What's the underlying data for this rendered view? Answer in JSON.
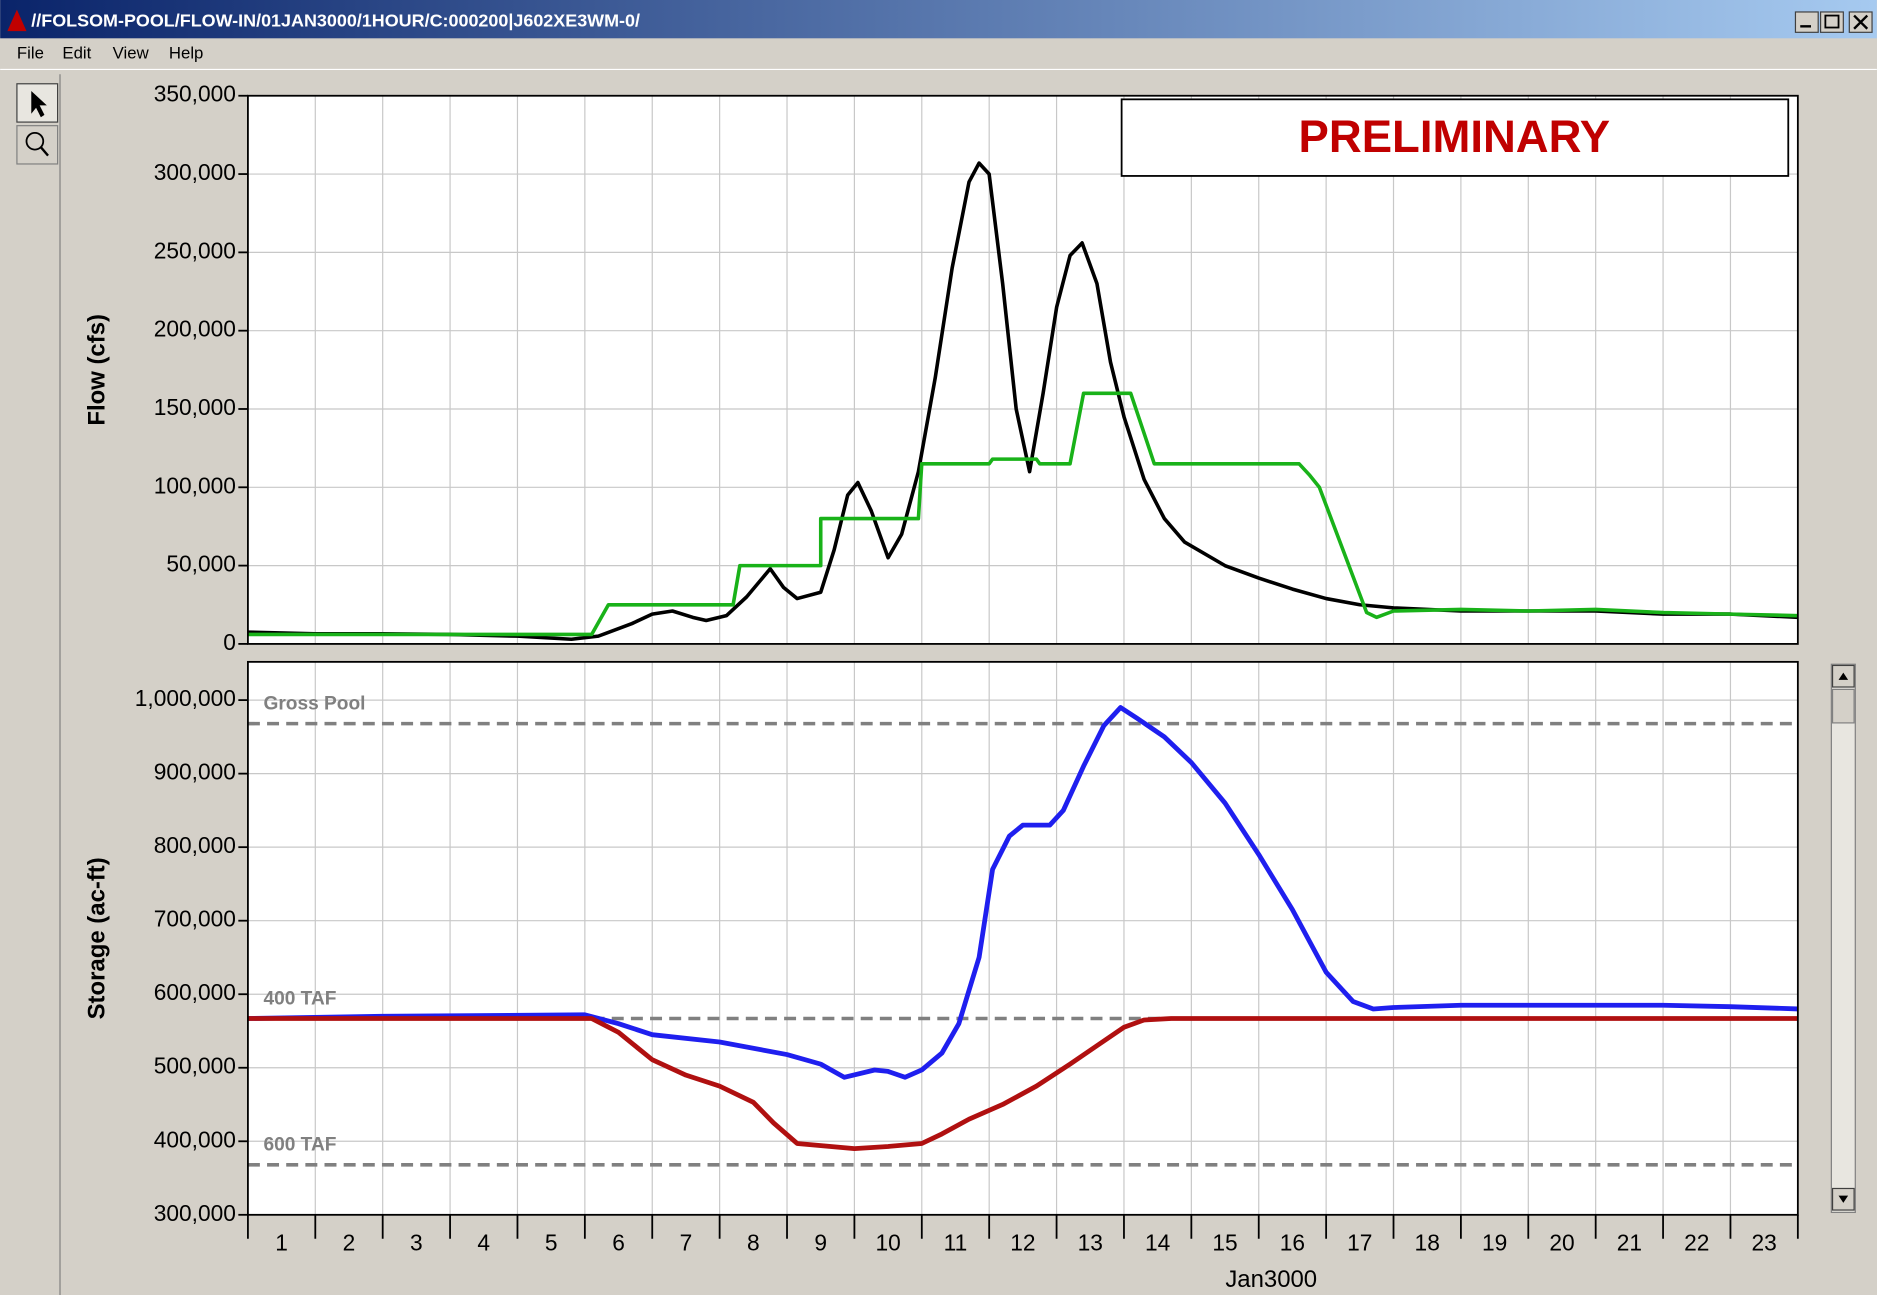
{
  "window": {
    "title": "//FOLSOM-POOL/FLOW-IN/01JAN3000/1HOUR/C:000200|J602XE3WM-0/",
    "menu": [
      "File",
      "Edit",
      "View",
      "Help"
    ]
  },
  "chart_data": [
    {
      "type": "line",
      "annotation": "PRELIMINARY",
      "ylabel": "Flow (cfs)",
      "grid": true,
      "xlim": [
        0,
        23
      ],
      "xgrid": [
        0,
        1,
        2,
        3,
        4,
        5,
        6,
        7,
        8,
        9,
        10,
        11,
        12,
        13,
        14,
        15,
        16,
        17,
        18,
        19,
        20,
        21,
        22,
        23
      ],
      "ylim": [
        0,
        350000
      ],
      "yticks": [
        0,
        {
          "value": 50000,
          "label": "50,000"
        },
        {
          "value": 100000,
          "label": "100,000"
        },
        {
          "value": 150000,
          "label": "150,000"
        },
        {
          "value": 200000,
          "label": "200,000"
        },
        {
          "value": 250000,
          "label": "250,000"
        },
        {
          "value": 300000,
          "label": "300,000"
        },
        {
          "value": 350000,
          "label": "350,000"
        }
      ],
      "series": [
        {
          "color": "#000000",
          "x": [
            0,
            1,
            2,
            3,
            4,
            4.8,
            5.2,
            5.7,
            6.0,
            6.3,
            6.6,
            6.8,
            7.1,
            7.4,
            7.75,
            7.95,
            8.15,
            8.5,
            8.7,
            8.9,
            9.05,
            9.25,
            9.5,
            9.7,
            9.95,
            10.2,
            10.45,
            10.7,
            10.85,
            11.0,
            11.2,
            11.4,
            11.6,
            11.8,
            12.0,
            12.2,
            12.38,
            12.6,
            12.8,
            13.0,
            13.3,
            13.6,
            13.9,
            14.5,
            15.0,
            15.5,
            16.0,
            16.5,
            17.0,
            17.5,
            18,
            19,
            20,
            21,
            22,
            23
          ],
          "values": [
            7500,
            6500,
            6500,
            6000,
            5000,
            3000,
            5000,
            13000,
            19000,
            21000,
            17000,
            15000,
            18000,
            30000,
            48000,
            36000,
            29000,
            33000,
            60000,
            95000,
            103000,
            85000,
            55000,
            70000,
            110000,
            170000,
            240000,
            295000,
            307000,
            300000,
            230000,
            150000,
            110000,
            160000,
            215000,
            248000,
            256000,
            230000,
            180000,
            145000,
            105000,
            80000,
            65000,
            50000,
            42000,
            35000,
            29000,
            25000,
            23000,
            22000,
            21000,
            21000,
            21000,
            19000,
            19000,
            17000
          ]
        },
        {
          "color": "#19b219",
          "x": [
            0,
            5.1,
            5.35,
            7.2,
            7.3,
            8.5,
            8.5,
            9.95,
            10.0,
            11.0,
            11.05,
            11.7,
            11.75,
            12.2,
            12.4,
            13.1,
            13.45,
            15.6,
            15.75,
            15.9,
            16.6,
            16.75,
            17.0,
            18,
            19,
            20,
            21,
            22,
            23
          ],
          "values": [
            6000,
            6000,
            25000,
            25000,
            50000,
            50000,
            80000,
            80000,
            115000,
            115000,
            118000,
            118000,
            115000,
            115000,
            160000,
            160000,
            115000,
            115000,
            108000,
            100000,
            20000,
            17000,
            21000,
            22000,
            21000,
            22000,
            20000,
            19000,
            18000
          ]
        }
      ]
    },
    {
      "type": "line",
      "ylabel": "Storage (ac-ft)",
      "xlabel": "Jan3000",
      "grid": true,
      "xlim": [
        0,
        23
      ],
      "xgrid": [
        0,
        1,
        2,
        3,
        4,
        5,
        6,
        7,
        8,
        9,
        10,
        11,
        12,
        13,
        14,
        15,
        16,
        17,
        18,
        19,
        20,
        21,
        22,
        23
      ],
      "xticks": [
        {
          "value": 0.5,
          "label": "1"
        },
        {
          "value": 1.5,
          "label": "2"
        },
        {
          "value": 2.5,
          "label": "3"
        },
        {
          "value": 3.5,
          "label": "4"
        },
        {
          "value": 4.5,
          "label": "5"
        },
        {
          "value": 5.5,
          "label": "6"
        },
        {
          "value": 6.5,
          "label": "7"
        },
        {
          "value": 7.5,
          "label": "8"
        },
        {
          "value": 8.5,
          "label": "9"
        },
        {
          "value": 9.5,
          "label": "10"
        },
        {
          "value": 10.5,
          "label": "11"
        },
        {
          "value": 11.5,
          "label": "12"
        },
        {
          "value": 12.5,
          "label": "13"
        },
        {
          "value": 13.5,
          "label": "14"
        },
        {
          "value": 14.5,
          "label": "15"
        },
        {
          "value": 15.5,
          "label": "16"
        },
        {
          "value": 16.5,
          "label": "17"
        },
        {
          "value": 17.5,
          "label": "18"
        },
        {
          "value": 18.5,
          "label": "19"
        },
        {
          "value": 19.5,
          "label": "20"
        },
        {
          "value": 20.5,
          "label": "21"
        },
        {
          "value": 21.5,
          "label": "22"
        },
        {
          "value": 22.5,
          "label": "23"
        }
      ],
      "ylim": [
        300000,
        1052000
      ],
      "yticks": [
        {
          "value": 300000,
          "label": "300,000"
        },
        {
          "value": 400000,
          "label": "400,000"
        },
        {
          "value": 500000,
          "label": "500,000"
        },
        {
          "value": 600000,
          "label": "600,000"
        },
        {
          "value": 700000,
          "label": "700,000"
        },
        {
          "value": 800000,
          "label": "800,000"
        },
        {
          "value": 900000,
          "label": "900,000"
        },
        {
          "value": 1000000,
          "label": "1,000,000"
        }
      ],
      "reference_lines": [
        {
          "label": "Gross Pool",
          "value": 968000
        },
        {
          "label": "400 TAF",
          "value": 567000
        },
        {
          "label": "600 TAF",
          "value": 368000
        }
      ],
      "series": [
        {
          "color": "#1f1fef",
          "x": [
            0,
            2,
            5.0,
            5.5,
            6.0,
            7.0,
            8.0,
            8.5,
            8.85,
            9.3,
            9.5,
            9.75,
            10.0,
            10.3,
            10.55,
            10.85,
            11.05,
            11.3,
            11.5,
            11.9,
            12.1,
            12.4,
            12.7,
            12.95,
            13.2,
            13.6,
            14.0,
            14.5,
            15.0,
            15.5,
            16.0,
            16.4,
            16.7,
            17.0,
            18,
            19,
            20,
            21,
            22,
            23
          ],
          "values": [
            567000,
            570000,
            572000,
            560000,
            545000,
            535000,
            518000,
            505000,
            487000,
            497000,
            495000,
            487000,
            497000,
            520000,
            560000,
            650000,
            770000,
            815000,
            830000,
            830000,
            850000,
            910000,
            965000,
            990000,
            975000,
            950000,
            915000,
            860000,
            790000,
            715000,
            630000,
            590000,
            580000,
            582000,
            585000,
            585000,
            585000,
            585000,
            583000,
            580000
          ]
        },
        {
          "color": "#b01010",
          "x": [
            0,
            5.1,
            5.5,
            6.0,
            6.5,
            7.0,
            7.5,
            7.8,
            8.15,
            9.0,
            9.5,
            10.0,
            10.3,
            10.7,
            11.2,
            11.7,
            12.2,
            12.6,
            13.0,
            13.3,
            13.7,
            23
          ],
          "values": [
            567000,
            567000,
            548000,
            511000,
            490000,
            475000,
            453000,
            425000,
            397000,
            390000,
            393000,
            397000,
            410000,
            430000,
            450000,
            475000,
            505000,
            530000,
            555000,
            565000,
            567000,
            567000
          ]
        }
      ]
    }
  ]
}
